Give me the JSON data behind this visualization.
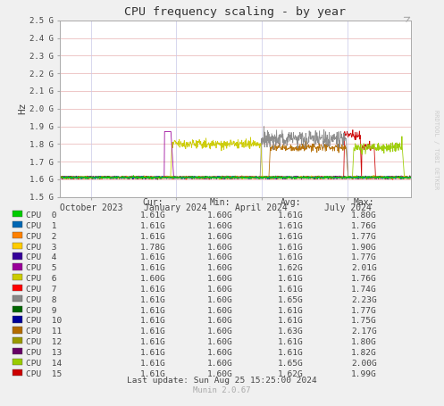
{
  "title": "CPU frequency scaling - by year",
  "ylabel": "Hz",
  "bg_color": "#f0f0f0",
  "plot_bg_color": "#ffffff",
  "grid_color_h": "#e8b0b0",
  "grid_color_v": "#c8c8e8",
  "x_labels": [
    "October 2023",
    "January 2024",
    "April 2024",
    "July 2024"
  ],
  "x_tick_pos": [
    0.09,
    0.33,
    0.575,
    0.82
  ],
  "y_ticks": [
    "1.5 G",
    "1.6 G",
    "1.7 G",
    "1.8 G",
    "1.9 G",
    "2.0 G",
    "2.1 G",
    "2.2 G",
    "2.3 G",
    "2.4 G",
    "2.5 G"
  ],
  "y_values": [
    1.5,
    1.6,
    1.7,
    1.8,
    1.9,
    2.0,
    2.1,
    2.2,
    2.3,
    2.4,
    2.5
  ],
  "cpu_colors": [
    "#00cc00",
    "#0066b3",
    "#ff8000",
    "#ffcc00",
    "#330099",
    "#990099",
    "#cccc00",
    "#ff0000",
    "#888888",
    "#006600",
    "#000099",
    "#b36b00",
    "#999900",
    "#660066",
    "#99cc00",
    "#cc0000"
  ],
  "cpu_labels": [
    "CPU  0",
    "CPU  1",
    "CPU  2",
    "CPU  3",
    "CPU  4",
    "CPU  5",
    "CPU  6",
    "CPU  7",
    "CPU  8",
    "CPU  9",
    "CPU  10",
    "CPU  11",
    "CPU  12",
    "CPU  13",
    "CPU  14",
    "CPU  15"
  ],
  "cur_vals": [
    "1.61G",
    "1.61G",
    "1.61G",
    "1.78G",
    "1.61G",
    "1.61G",
    "1.60G",
    "1.61G",
    "1.61G",
    "1.61G",
    "1.61G",
    "1.61G",
    "1.61G",
    "1.61G",
    "1.61G",
    "1.61G"
  ],
  "min_vals": [
    "1.60G",
    "1.60G",
    "1.60G",
    "1.60G",
    "1.60G",
    "1.60G",
    "1.60G",
    "1.60G",
    "1.60G",
    "1.60G",
    "1.60G",
    "1.60G",
    "1.60G",
    "1.60G",
    "1.60G",
    "1.60G"
  ],
  "avg_vals": [
    "1.61G",
    "1.61G",
    "1.61G",
    "1.61G",
    "1.61G",
    "1.62G",
    "1.61G",
    "1.61G",
    "1.65G",
    "1.61G",
    "1.61G",
    "1.63G",
    "1.61G",
    "1.61G",
    "1.65G",
    "1.62G"
  ],
  "max_vals": [
    "1.80G",
    "1.76G",
    "1.77G",
    "1.90G",
    "1.77G",
    "2.01G",
    "1.76G",
    "1.74G",
    "2.23G",
    "1.77G",
    "1.75G",
    "2.17G",
    "1.80G",
    "1.82G",
    "2.00G",
    "1.99G"
  ],
  "last_update": "Last update: Sun Aug 25 15:25:00 2024",
  "munin_version": "Munin 2.0.67",
  "watermark": "RRDTOOL / TOBI OETKER"
}
